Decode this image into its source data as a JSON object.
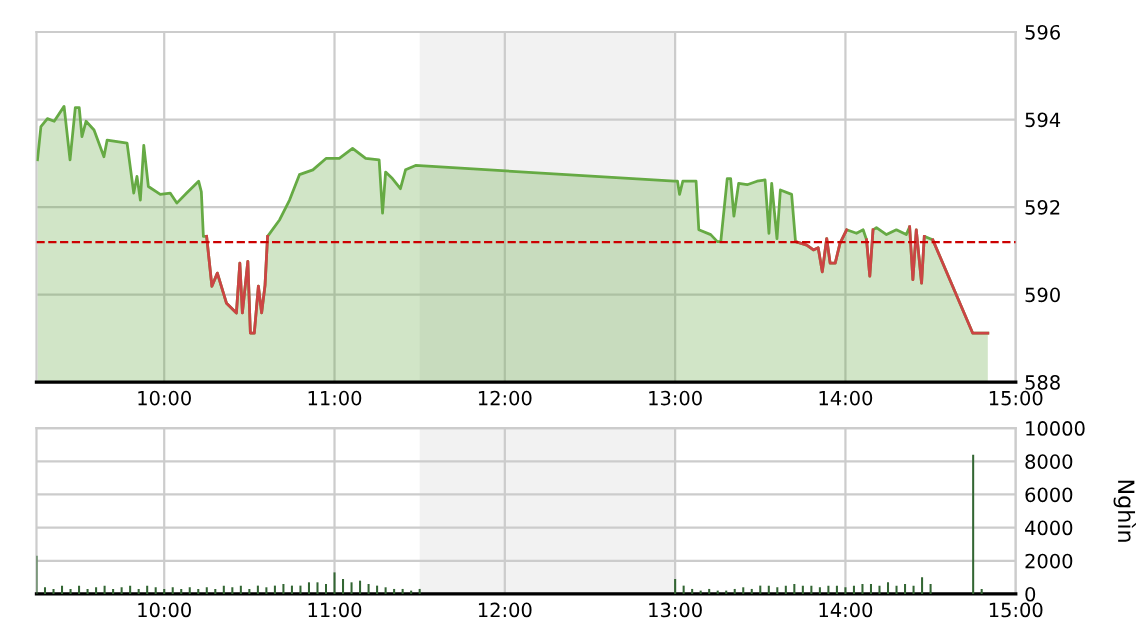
{
  "chart_data": [
    {
      "type": "area",
      "xlim": [
        9.25,
        15
      ],
      "ylim": [
        588,
        596
      ],
      "xticks": [
        {
          "value": 10,
          "label": "10:00"
        },
        {
          "value": 11,
          "label": "11:00"
        },
        {
          "value": 12,
          "label": "12:00"
        },
        {
          "value": 13,
          "label": "13:00"
        },
        {
          "value": 14,
          "label": "14:00"
        },
        {
          "value": 15,
          "label": "15:00"
        }
      ],
      "yticks": [
        588,
        590,
        592,
        594,
        596
      ],
      "grid": true,
      "bands": [
        {
          "axis": "x",
          "from": 11.5,
          "to": 13,
          "color": "#f2f2f2"
        }
      ],
      "ref_lines": [
        {
          "axis": "y",
          "value": 591.2,
          "color": "#cc0000",
          "line_style": "dashed"
        }
      ],
      "series": [
        {
          "color": "#66aa44",
          "x": [
            9.256,
            9.276,
            9.314,
            9.354,
            9.412,
            9.447,
            9.478,
            9.501,
            9.517,
            9.541,
            9.588,
            9.646,
            9.665,
            9.782,
            9.821,
            9.84,
            9.86,
            9.88,
            9.907,
            9.977,
            10.035,
            10.074,
            10.132,
            10.202,
            10.218,
            10.23,
            10.249,
            10.28,
            10.312,
            10.366,
            10.424,
            10.444,
            10.459,
            10.491,
            10.506,
            10.529,
            10.553,
            10.572,
            10.592,
            10.607,
            10.678,
            10.736,
            10.794,
            10.873,
            10.95,
            11.028,
            11.106,
            11.183,
            11.262,
            11.282,
            11.3,
            11.34,
            11.387,
            11.417,
            11.476,
            12.995,
            13.014,
            13.026,
            13.045,
            13.123,
            13.139,
            13.209,
            13.248,
            13.268,
            13.306,
            13.326,
            13.345,
            13.373,
            13.423,
            13.481,
            13.528,
            13.551,
            13.567,
            13.598,
            13.618,
            13.684,
            13.707,
            13.773,
            13.812,
            13.84,
            13.864,
            13.89,
            13.91,
            13.94,
            13.968,
            14.007,
            14.065,
            14.104,
            14.124,
            14.143,
            14.162,
            14.182,
            14.241,
            14.299,
            14.357,
            14.377,
            14.396,
            14.416,
            14.447,
            14.463,
            14.494,
            14.513,
            14.747,
            14.836
          ],
          "values": [
            593.08,
            593.84,
            594.02,
            593.96,
            594.3,
            593.08,
            594.27,
            594.27,
            593.61,
            593.96,
            593.76,
            593.15,
            593.53,
            593.46,
            592.32,
            592.7,
            592.16,
            593.41,
            592.47,
            592.29,
            592.32,
            592.09,
            592.32,
            592.59,
            592.35,
            591.33,
            591.33,
            590.19,
            590.49,
            589.8,
            589.58,
            590.72,
            589.58,
            590.76,
            589.12,
            589.12,
            590.19,
            589.58,
            590.21,
            591.33,
            591.71,
            592.16,
            592.74,
            592.85,
            593.11,
            593.11,
            593.34,
            593.11,
            593.08,
            591.86,
            592.8,
            592.65,
            592.42,
            592.85,
            592.95,
            592.59,
            592.59,
            592.29,
            592.59,
            592.59,
            591.48,
            591.37,
            591.21,
            591.21,
            592.65,
            592.65,
            591.79,
            592.54,
            592.51,
            592.59,
            592.62,
            591.4,
            592.54,
            591.28,
            592.39,
            592.29,
            591.21,
            591.13,
            591.02,
            591.07,
            590.52,
            591.28,
            590.72,
            590.72,
            591.17,
            591.48,
            591.4,
            591.48,
            591.25,
            590.42,
            591.48,
            591.53,
            591.37,
            591.48,
            591.37,
            591.55,
            590.34,
            591.48,
            590.26,
            591.33,
            591.28,
            591.25,
            589.12,
            589.12
          ]
        },
        {
          "type": "line",
          "color": "#cc4444",
          "x": [
            10.249,
            10.28,
            10.312,
            10.366,
            10.424,
            10.444,
            10.459,
            10.491,
            10.506,
            10.529,
            10.553,
            10.572,
            10.592,
            10.607
          ],
          "values": [
            591.33,
            590.19,
            590.49,
            589.8,
            589.58,
            590.72,
            589.58,
            590.76,
            589.12,
            589.12,
            590.19,
            589.58,
            590.21,
            591.33
          ]
        },
        {
          "type": "line",
          "color": "#cc4444",
          "x": [
            13.707,
            13.773,
            13.812,
            13.84,
            13.864,
            13.89,
            13.91,
            13.94,
            13.968,
            14.007
          ],
          "values": [
            591.21,
            591.13,
            591.02,
            591.07,
            590.52,
            591.28,
            590.72,
            590.72,
            591.17,
            591.48
          ]
        },
        {
          "type": "line",
          "color": "#cc4444",
          "x": [
            14.124,
            14.143,
            14.162
          ],
          "values": [
            591.25,
            590.42,
            591.48
          ]
        },
        {
          "type": "line",
          "color": "#cc4444",
          "x": [
            14.377,
            14.396,
            14.416,
            14.447,
            14.463
          ],
          "values": [
            591.55,
            590.34,
            591.48,
            590.26,
            591.33
          ]
        },
        {
          "type": "line",
          "color": "#cc4444",
          "x": [
            14.513,
            14.747,
            14.836
          ],
          "values": [
            591.25,
            589.12,
            589.12
          ]
        }
      ]
    },
    {
      "type": "bar",
      "xlim": [
        9.25,
        15
      ],
      "ylim": [
        0,
        10000
      ],
      "ylabel": "Nghìn",
      "xticks": [
        {
          "value": 10,
          "label": "10:00"
        },
        {
          "value": 11,
          "label": "11:00"
        },
        {
          "value": 12,
          "label": "12:00"
        },
        {
          "value": 13,
          "label": "13:00"
        },
        {
          "value": 14,
          "label": "14:00"
        },
        {
          "value": 15,
          "label": "15:00"
        }
      ],
      "yticks": [
        0,
        2000,
        4000,
        6000,
        8000,
        10000
      ],
      "grid": true,
      "bands": [
        {
          "axis": "x",
          "from": 11.5,
          "to": 13,
          "color": "#f2f2f2"
        }
      ],
      "series": [
        {
          "color": "#336633",
          "x": [
            9.25,
            9.3,
            9.35,
            9.4,
            9.45,
            9.5,
            9.55,
            9.6,
            9.65,
            9.7,
            9.75,
            9.8,
            9.85,
            9.9,
            9.95,
            10.0,
            10.05,
            10.1,
            10.15,
            10.2,
            10.25,
            10.3,
            10.35,
            10.4,
            10.45,
            10.5,
            10.55,
            10.6,
            10.65,
            10.7,
            10.75,
            10.8,
            10.85,
            10.9,
            10.95,
            11.0,
            11.05,
            11.1,
            11.15,
            11.2,
            11.25,
            11.3,
            11.35,
            11.4,
            11.45,
            11.5,
            13.0,
            13.05,
            13.1,
            13.15,
            13.2,
            13.25,
            13.3,
            13.35,
            13.4,
            13.45,
            13.5,
            13.55,
            13.6,
            13.65,
            13.7,
            13.75,
            13.8,
            13.85,
            13.9,
            13.95,
            14.0,
            14.05,
            14.1,
            14.15,
            14.2,
            14.25,
            14.3,
            14.35,
            14.4,
            14.45,
            14.5,
            14.75,
            14.8
          ],
          "values": [
            2300,
            400,
            300,
            500,
            300,
            500,
            300,
            400,
            500,
            300,
            400,
            500,
            300,
            500,
            400,
            300,
            400,
            300,
            400,
            300,
            400,
            300,
            500,
            400,
            500,
            300,
            500,
            400,
            500,
            600,
            500,
            500,
            700,
            700,
            600,
            1300,
            900,
            700,
            800,
            600,
            500,
            400,
            300,
            300,
            200,
            300,
            900,
            500,
            300,
            200,
            300,
            200,
            200,
            300,
            400,
            300,
            500,
            500,
            400,
            500,
            600,
            500,
            500,
            400,
            500,
            500,
            400,
            500,
            600,
            600,
            500,
            700,
            500,
            600,
            500,
            1000,
            600,
            8400,
            300
          ]
        }
      ]
    }
  ]
}
